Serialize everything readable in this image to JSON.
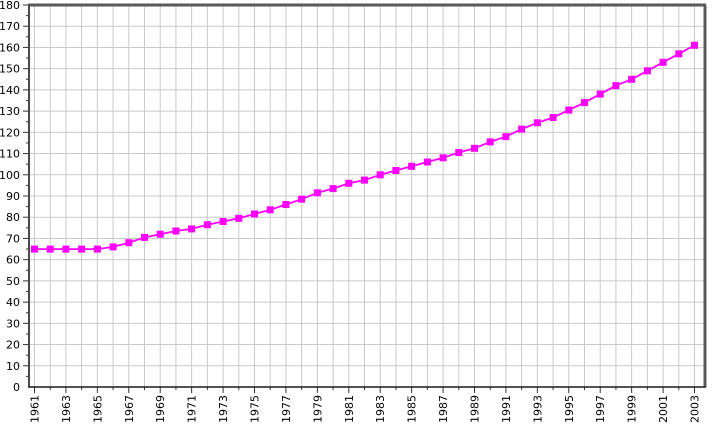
{
  "chart_data": {
    "type": "line",
    "title": "",
    "xlabel": "",
    "ylabel": "",
    "x": [
      1961,
      1962,
      1963,
      1964,
      1965,
      1966,
      1967,
      1968,
      1969,
      1970,
      1971,
      1972,
      1973,
      1974,
      1975,
      1976,
      1977,
      1978,
      1979,
      1980,
      1981,
      1982,
      1983,
      1984,
      1985,
      1986,
      1987,
      1988,
      1989,
      1990,
      1991,
      1992,
      1993,
      1994,
      1995,
      1996,
      1997,
      1998,
      1999,
      2000,
      2001,
      2002,
      2003
    ],
    "series": [
      {
        "name": "value",
        "values": [
          65,
          65,
          65,
          65,
          65,
          66,
          68,
          70.5,
          72,
          73.5,
          74.5,
          76.5,
          78,
          79.5,
          81.5,
          83.5,
          86,
          88.5,
          91.5,
          93.5,
          96,
          97.5,
          100,
          102,
          104,
          106,
          108,
          110.5,
          112.5,
          115.5,
          118,
          121.5,
          124.5,
          127,
          130.5,
          134,
          138,
          142,
          145,
          149,
          153,
          157,
          161
        ],
        "color": "#ff00ff",
        "marker": "square",
        "marker_size": 7,
        "line_width": 1.8
      }
    ],
    "ylim": [
      0,
      180
    ],
    "y_major_step": 10,
    "y_minor_step": 5,
    "y_tick_labels": [
      "0",
      "10",
      "20",
      "30",
      "40",
      "50",
      "60",
      "70",
      "80",
      "90",
      "100",
      "110",
      "120",
      "130",
      "140",
      "150",
      "160",
      "170",
      "180"
    ],
    "x_tick_labels": [
      "1961",
      "1963",
      "1965",
      "1967",
      "1969",
      "1971",
      "1973",
      "1975",
      "1977",
      "1979",
      "1981",
      "1983",
      "1985",
      "1987",
      "1989",
      "1991",
      "1993",
      "1995",
      "1997",
      "1999",
      "2001",
      "2003"
    ],
    "x_tick_label_rotation": -90,
    "grid": {
      "vertical": "every-year",
      "horizontal": "every-10-units",
      "on": true
    },
    "legend_position": "none"
  },
  "colors": {
    "series": "#ff00ff",
    "gridline": "#c9c9c9",
    "frame_top_right": "#595959",
    "frame_left": "#4a4a4a",
    "axis_bottom": "#1a1a1a",
    "tick": "#333333",
    "background": "#ffffff"
  }
}
